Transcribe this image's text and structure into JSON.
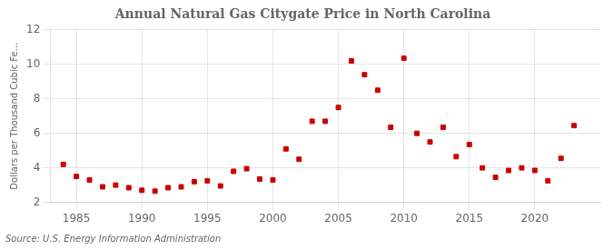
{
  "chart_data": {
    "type": "scatter",
    "title": "Annual Natural Gas Citygate Price in North Carolina",
    "ylabel": "Dollars per Thousand Cubic Fe...",
    "annotations": [
      "Source: U.S. Energy Information Administration"
    ],
    "x": [
      1984,
      1985,
      1986,
      1987,
      1988,
      1989,
      1990,
      1991,
      1992,
      1993,
      1994,
      1995,
      1996,
      1997,
      1998,
      1999,
      2000,
      2001,
      2002,
      2003,
      2004,
      2005,
      2006,
      2007,
      2008,
      2009,
      2010,
      2011,
      2012,
      2013,
      2014,
      2015,
      2016,
      2017,
      2018,
      2019,
      2020,
      2021,
      2022,
      2023
    ],
    "values": [
      4.2,
      3.5,
      3.3,
      2.9,
      3.0,
      2.85,
      2.7,
      2.65,
      2.85,
      2.9,
      3.2,
      3.25,
      2.95,
      3.8,
      3.95,
      3.35,
      3.3,
      5.1,
      4.5,
      6.7,
      6.7,
      7.5,
      10.2,
      9.4,
      8.5,
      6.35,
      10.35,
      6.0,
      5.5,
      6.35,
      4.65,
      5.35,
      4.0,
      3.45,
      3.85,
      4.0,
      3.85,
      3.25,
      4.55,
      6.45
    ],
    "color": "#cc0000",
    "marker": "square",
    "xlim": [
      1983,
      2025
    ],
    "xticks": [
      1985,
      1990,
      1995,
      2000,
      2005,
      2010,
      2015,
      2020
    ],
    "ylim": [
      2,
      12
    ],
    "yticks": [
      2,
      4,
      6,
      8,
      10,
      12
    ],
    "grid": true
  }
}
